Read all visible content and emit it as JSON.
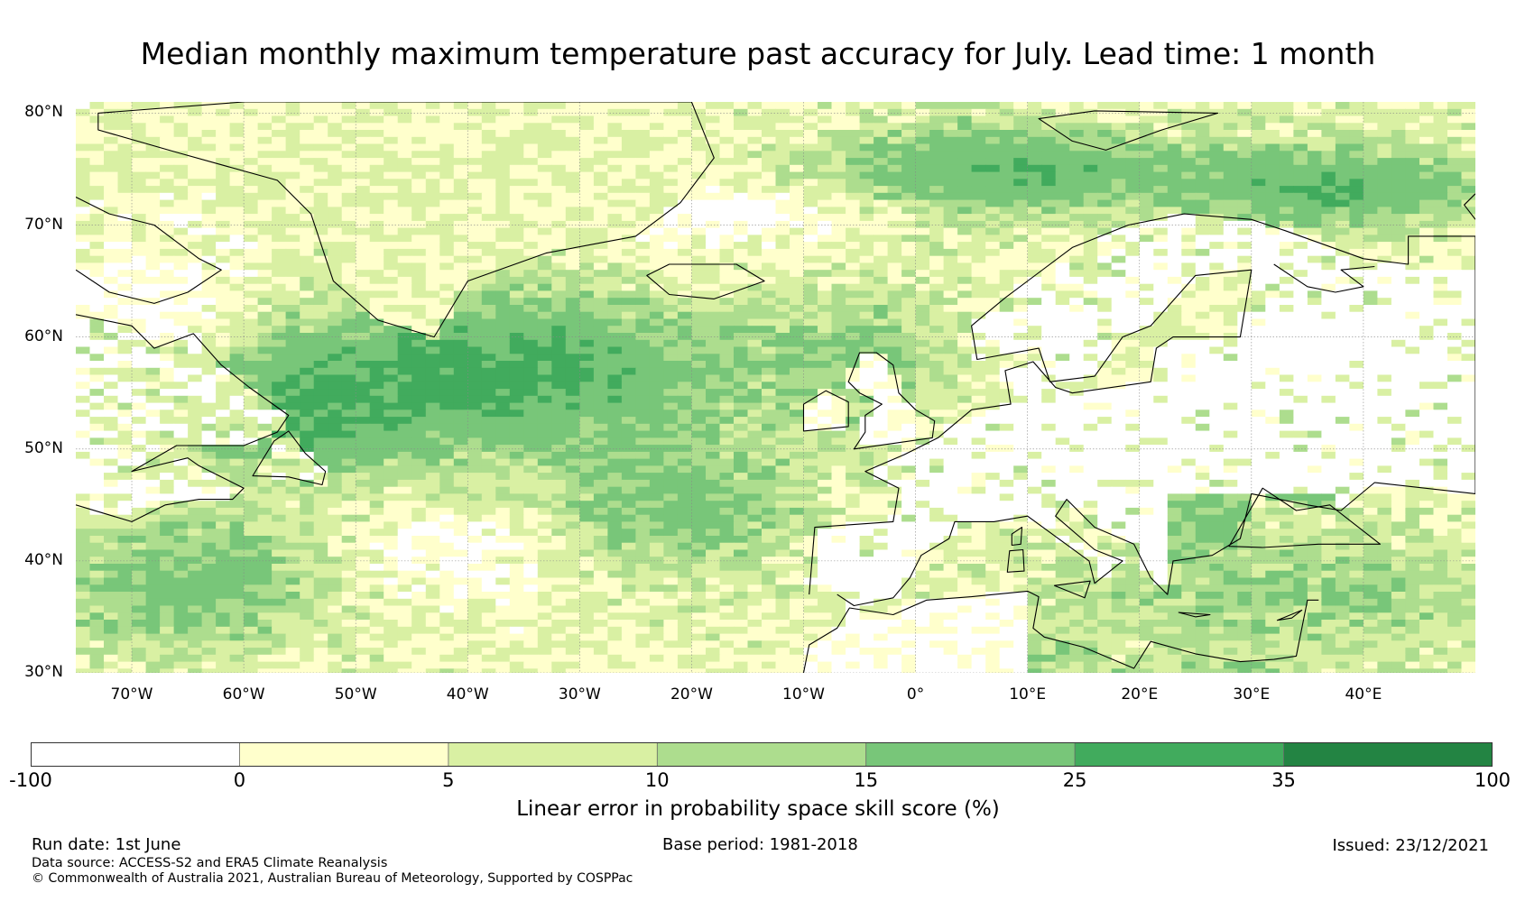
{
  "title": "Median monthly maximum temperature past accuracy for July. Lead time: 1 month",
  "map": {
    "lon_range": [
      -75,
      50
    ],
    "lat_range": [
      30,
      81
    ],
    "lat_ticks": [
      {
        "value": 80,
        "label": "80°N"
      },
      {
        "value": 70,
        "label": "70°N"
      },
      {
        "value": 60,
        "label": "60°N"
      },
      {
        "value": 50,
        "label": "50°N"
      },
      {
        "value": 40,
        "label": "40°N"
      },
      {
        "value": 30,
        "label": "30°N"
      }
    ],
    "lon_ticks": [
      {
        "value": -70,
        "label": "70°W"
      },
      {
        "value": -60,
        "label": "60°W"
      },
      {
        "value": -50,
        "label": "50°W"
      },
      {
        "value": -40,
        "label": "40°W"
      },
      {
        "value": -30,
        "label": "30°W"
      },
      {
        "value": -20,
        "label": "20°W"
      },
      {
        "value": -10,
        "label": "10°W"
      },
      {
        "value": 0,
        "label": "0°"
      },
      {
        "value": 10,
        "label": "10°E"
      },
      {
        "value": 20,
        "label": "20°E"
      },
      {
        "value": 30,
        "label": "30°E"
      },
      {
        "value": 40,
        "label": "40°E"
      }
    ]
  },
  "colorbar": {
    "label": "Linear error in probability space skill score (%)",
    "bins": [
      {
        "from": -100,
        "to": 0,
        "color": "#ffffff"
      },
      {
        "from": 0,
        "to": 5,
        "color": "#ffffcc"
      },
      {
        "from": 5,
        "to": 10,
        "color": "#d9f0a3"
      },
      {
        "from": 10,
        "to": 15,
        "color": "#addd8e"
      },
      {
        "from": 15,
        "to": 25,
        "color": "#78c679"
      },
      {
        "from": 25,
        "to": 35,
        "color": "#41ab5d"
      },
      {
        "from": 35,
        "to": 100,
        "color": "#238443"
      }
    ],
    "tick_labels": [
      "-100",
      "0",
      "5",
      "10",
      "15",
      "25",
      "35",
      "100"
    ]
  },
  "footer": {
    "run_date": "Run date: 1st June",
    "base_period": "Base period: 1981-2018",
    "issued": "Issued: 23/12/2021",
    "data_source": "Data source: ACCESS-S2 and ERA5 Climate Reanalysis",
    "copyright": "© Commonwealth of Australia 2021, Australian Bureau of Meteorology, Supported by COSPPac"
  }
}
